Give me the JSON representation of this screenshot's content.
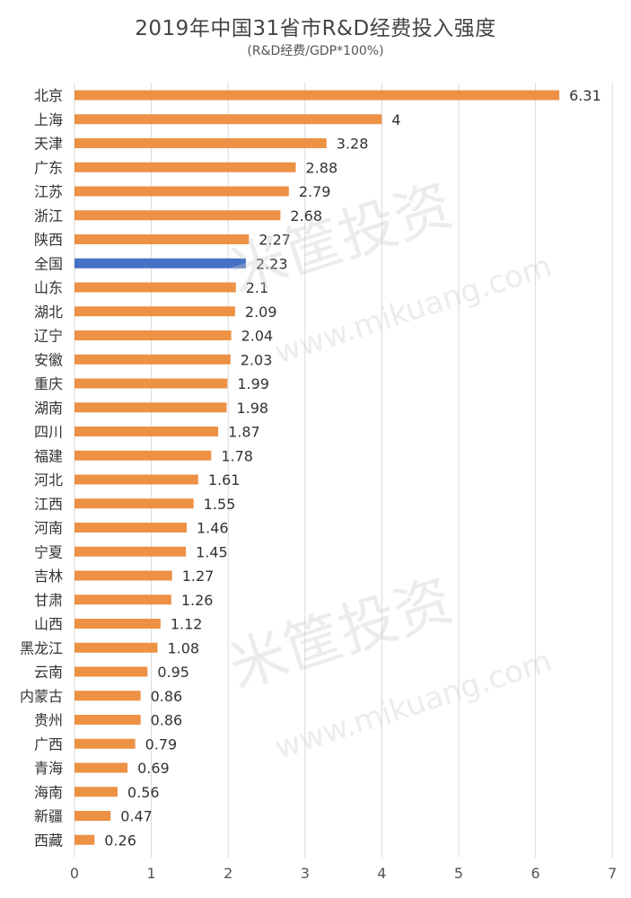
{
  "chart_data": {
    "type": "bar",
    "orientation": "horizontal",
    "title": "2019年中国31省市R&D经费投入强度",
    "subtitle": "(R&D经费/GDP*100%)",
    "categories": [
      "北京",
      "上海",
      "天津",
      "广东",
      "江苏",
      "浙江",
      "陕西",
      "全国",
      "山东",
      "湖北",
      "辽宁",
      "安徽",
      "重庆",
      "湖南",
      "四川",
      "福建",
      "河北",
      "江西",
      "河南",
      "宁夏",
      "吉林",
      "甘肃",
      "山西",
      "黑龙江",
      "云南",
      "内蒙古",
      "贵州",
      "广西",
      "青海",
      "海南",
      "新疆",
      "西藏"
    ],
    "values": [
      6.31,
      4,
      3.28,
      2.88,
      2.79,
      2.68,
      2.27,
      2.23,
      2.1,
      2.09,
      2.04,
      2.03,
      1.99,
      1.98,
      1.87,
      1.78,
      1.61,
      1.55,
      1.46,
      1.45,
      1.27,
      1.26,
      1.12,
      1.08,
      0.95,
      0.86,
      0.86,
      0.79,
      0.69,
      0.56,
      0.47,
      0.26
    ],
    "value_labels": [
      "6.31",
      "4",
      "3.28",
      "2.88",
      "2.79",
      "2.68",
      "2.27",
      "2.23",
      "2.1",
      "2.09",
      "2.04",
      "2.03",
      "1.99",
      "1.98",
      "1.87",
      "1.78",
      "1.61",
      "1.55",
      "1.46",
      "1.45",
      "1.27",
      "1.26",
      "1.12",
      "1.08",
      "0.95",
      "0.86",
      "0.86",
      "0.79",
      "0.69",
      "0.56",
      "0.47",
      "0.26"
    ],
    "xlim": [
      0,
      7
    ],
    "xticks": [
      "0",
      "1",
      "2",
      "3",
      "4",
      "5",
      "6",
      "7"
    ],
    "grid": "vertical",
    "legend": "none",
    "colors": {
      "bar": "#ED9145",
      "highlight": "#4472C4",
      "highlight_category": "全国",
      "grid": "#d9d9d9",
      "text": "#333333"
    }
  },
  "watermark": {
    "text": "米筐投资",
    "url": "www.mikuang.com"
  }
}
